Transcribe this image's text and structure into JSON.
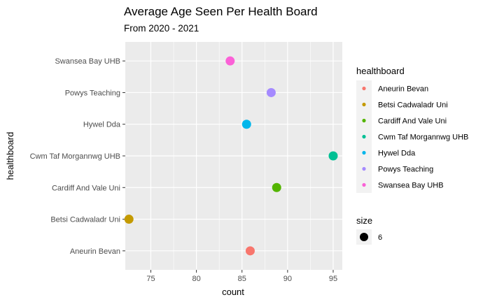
{
  "chart_data": {
    "type": "scatter",
    "title": "Average Age Seen Per Health Board",
    "subtitle": "From 2020 - 2021",
    "xlabel": "count",
    "ylabel": "healthboard",
    "xlim": [
      72.2,
      96.0
    ],
    "xticks": [
      75,
      80,
      85,
      90,
      95
    ],
    "grid": true,
    "categories": [
      "Aneurin Bevan",
      "Betsi Cadwaladr Uni",
      "Cardiff And Vale Uni",
      "Cwm Taf Morgannwg UHB",
      "Hywel Dda",
      "Powys Teaching",
      "Swansea Bay UHB"
    ],
    "values": [
      85.9,
      72.6,
      88.8,
      95.0,
      85.5,
      88.2,
      83.7
    ],
    "colors": [
      "#F8766D",
      "#C49A00",
      "#53B400",
      "#00C094",
      "#00B6EB",
      "#A58AFF",
      "#FB61D7"
    ],
    "legend": {
      "title": "healthboard",
      "placement": "right",
      "entries": [
        "Aneurin Bevan",
        "Betsi Cadwaladr Uni",
        "Cardiff And Vale Uni",
        "Cwm Taf Morgannwg UHB",
        "Hywel Dda",
        "Powys Teaching",
        "Swansea Bay UHB"
      ]
    },
    "size_legend": {
      "title": "size",
      "label": "6"
    }
  }
}
